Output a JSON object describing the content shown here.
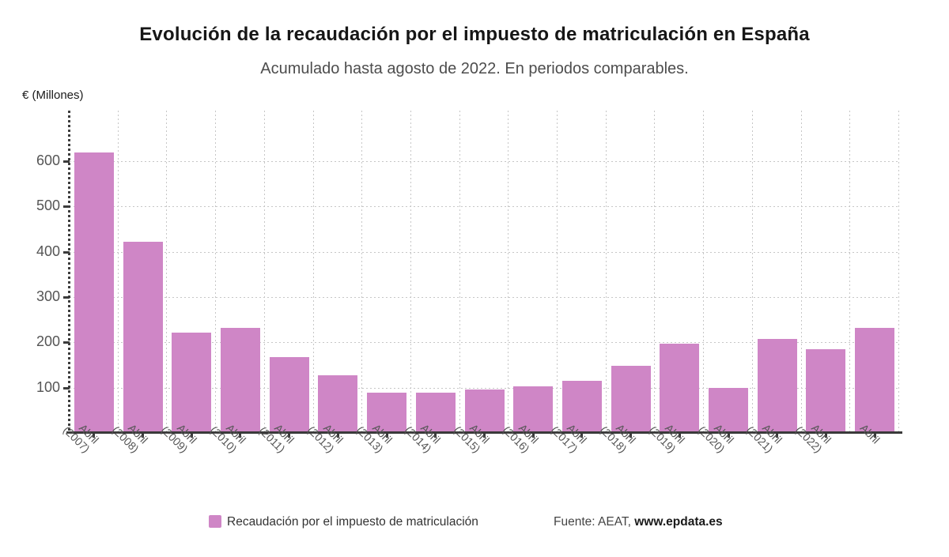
{
  "source": {
    "prefix": "Fuente: AEAT, ",
    "site": "www.epdata.es"
  },
  "chart_data": {
    "type": "bar",
    "title": "Evolución de la recaudación por el impuesto de matriculación en España",
    "subtitle": "Acumulado hasta agosto de 2022. En periodos comparables.",
    "ylabel": "€ (Millones)",
    "xlabel": "",
    "categories": [
      "Abril (2007)",
      "Abril (2008)",
      "Abril (2009)",
      "Abril (2010)",
      "Abril (2011)",
      "Abril (2012)",
      "Abril (2013)",
      "Abril (2014)",
      "Abril (2015)",
      "Abril (2016)",
      "Abril (2017)",
      "Abril (2018)",
      "Abril (2019)",
      "Abril (2020)",
      "Abril (2021)",
      "Abril (2022)",
      "Abril"
    ],
    "series": [
      {
        "name": "Recaudación por el impuesto de matriculación",
        "values": [
          617,
          420,
          219,
          230,
          165,
          126,
          88,
          87,
          94,
          101,
          114,
          147,
          196,
          97,
          205,
          184,
          230
        ]
      }
    ],
    "yticks": [
      100,
      200,
      300,
      400,
      500,
      600
    ],
    "ylim": [
      0,
      712
    ],
    "grid": true,
    "legend_position": "bottom",
    "bar_color": "#cf86c6",
    "grid_color": "#c6c6c6",
    "axis_color": "#3a3a3a"
  }
}
